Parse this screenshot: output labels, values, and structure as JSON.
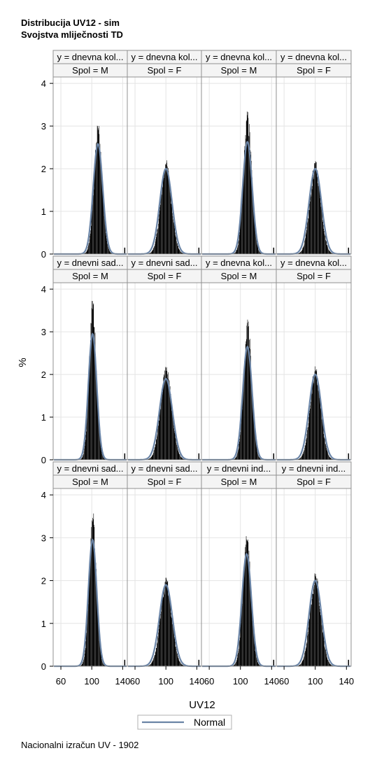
{
  "titles": {
    "line1": "Distribucija UV12 - sim",
    "line2": "Svojstva mliječnosti TD"
  },
  "footnote": "Nacionalni izračun UV - 1902",
  "colors": {
    "histogram": "#000000",
    "normal_curve": "#6a84a6",
    "grid": "#e4e4e4",
    "header_fill": "#f4f4f4",
    "frame": "#909090"
  },
  "chart_data": {
    "type": "histogram-panel",
    "xlabel": "UV12",
    "ylabel": "%",
    "xlim": [
      50,
      146
    ],
    "ylim": [
      0,
      4.15
    ],
    "xticks": [
      60,
      100,
      140
    ],
    "yticks": [
      0,
      1,
      2,
      3,
      4
    ],
    "grid": true,
    "legend": {
      "position": "bottom-center",
      "entries": [
        {
          "name": "Normal",
          "style": "line"
        }
      ]
    },
    "rows": [
      {
        "panels": [
          {
            "y": "y = dnevna kol...",
            "spol": "Spol = M",
            "normal_mean": 108,
            "normal_peak": 2.58,
            "hist_peak": 3.03
          },
          {
            "y": "y = dnevna kol...",
            "spol": "Spol = F",
            "normal_mean": 100,
            "normal_peak": 2.0,
            "hist_peak": 2.2
          },
          {
            "y": "y = dnevna kol...",
            "spol": "Spol = M",
            "normal_mean": 109,
            "normal_peak": 2.63,
            "hist_peak": 3.35
          },
          {
            "y": "y = dnevna kol...",
            "spol": "Spol = F",
            "normal_mean": 100,
            "normal_peak": 2.0,
            "hist_peak": 2.18
          }
        ]
      },
      {
        "panels": [
          {
            "y": "y = dnevni sad...",
            "spol": "Spol = M",
            "normal_mean": 101,
            "normal_peak": 2.95,
            "hist_peak": 3.73
          },
          {
            "y": "y = dnevni sad...",
            "spol": "Spol = F",
            "normal_mean": 100,
            "normal_peak": 1.9,
            "hist_peak": 2.2
          },
          {
            "y": "y = dnevna kol...",
            "spol": "Spol = M",
            "normal_mean": 109,
            "normal_peak": 2.65,
            "hist_peak": 3.3
          },
          {
            "y": "y = dnevna kol...",
            "spol": "Spol = F",
            "normal_mean": 100,
            "normal_peak": 2.0,
            "hist_peak": 2.2
          }
        ]
      },
      {
        "panels": [
          {
            "y": "y = dnevni sad...",
            "spol": "Spol = M",
            "normal_mean": 101,
            "normal_peak": 2.95,
            "hist_peak": 3.58
          },
          {
            "y": "y = dnevni sad...",
            "spol": "Spol = F",
            "normal_mean": 100,
            "normal_peak": 1.9,
            "hist_peak": 2.07
          },
          {
            "y": "y = dnevni ind...",
            "spol": "Spol = M",
            "normal_mean": 108,
            "normal_peak": 2.62,
            "hist_peak": 3.1
          },
          {
            "y": "y = dnevni ind...",
            "spol": "Spol = F",
            "normal_mean": 100,
            "normal_peak": 2.0,
            "hist_peak": 2.18
          }
        ]
      }
    ]
  }
}
